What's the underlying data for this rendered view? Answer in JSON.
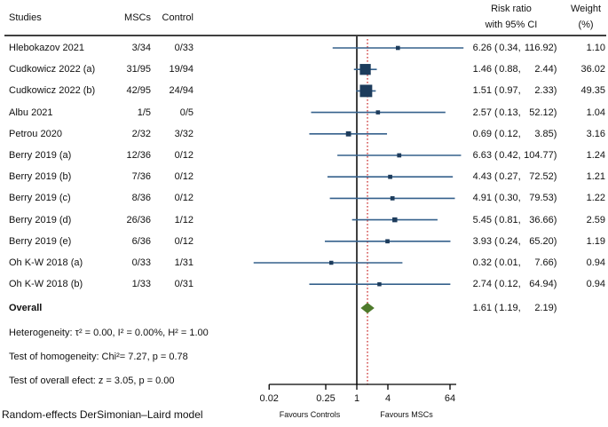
{
  "header": {
    "studies": "Studies",
    "mscs": "MSCs",
    "control": "Control",
    "risk_ratio_line1": "Risk ratio",
    "risk_ratio_line2": "with 95% CI",
    "weight_line1": "Weight",
    "weight_line2": "(%)"
  },
  "chart_data": {
    "type": "forest",
    "x_scale": "log2",
    "x_ticks": [
      0.02,
      0.25,
      1,
      4,
      64
    ],
    "x_tick_labels": [
      "0.02",
      "0.25",
      "1",
      "4",
      "64"
    ],
    "x_range": [
      0.02,
      64
    ],
    "reference_line_value": 1,
    "overall_line_value": 1.61,
    "favours_left": "Favours Controls",
    "favours_right": "Favours MSCs",
    "studies": [
      {
        "name": "Hlebokazov 2021",
        "mscs": "3/34",
        "control": "0/33",
        "rr": 6.26,
        "ci_low": 0.34,
        "ci_high": 116.92,
        "rr_text": "6.26",
        "ci_low_text": "0.34",
        "ci_high_text": "116.92",
        "weight": 1.1,
        "weight_text": "1.10"
      },
      {
        "name": "Cudkowicz 2022 (a)",
        "mscs": "31/95",
        "control": "19/94",
        "rr": 1.46,
        "ci_low": 0.88,
        "ci_high": 2.44,
        "rr_text": "1.46",
        "ci_low_text": "0.88",
        "ci_high_text": "2.44",
        "weight": 36.02,
        "weight_text": "36.02"
      },
      {
        "name": "Cudkowicz 2022 (b)",
        "mscs": "42/95",
        "control": "24/94",
        "rr": 1.51,
        "ci_low": 0.97,
        "ci_high": 2.33,
        "rr_text": "1.51",
        "ci_low_text": "0.97",
        "ci_high_text": "2.33",
        "weight": 49.35,
        "weight_text": "49.35"
      },
      {
        "name": "Albu 2021",
        "mscs": "1/5",
        "control": "0/5",
        "rr": 2.57,
        "ci_low": 0.13,
        "ci_high": 52.12,
        "rr_text": "2.57",
        "ci_low_text": "0.13",
        "ci_high_text": "52.12",
        "weight": 1.04,
        "weight_text": "1.04"
      },
      {
        "name": "Petrou 2020",
        "mscs": "2/32",
        "control": "3/32",
        "rr": 0.69,
        "ci_low": 0.12,
        "ci_high": 3.85,
        "rr_text": "0.69",
        "ci_low_text": "0.12",
        "ci_high_text": "3.85",
        "weight": 3.16,
        "weight_text": "3.16"
      },
      {
        "name": "Berry 2019 (a)",
        "mscs": "12/36",
        "control": "0/12",
        "rr": 6.63,
        "ci_low": 0.42,
        "ci_high": 104.77,
        "rr_text": "6.63",
        "ci_low_text": "0.42",
        "ci_high_text": "104.77",
        "weight": 1.24,
        "weight_text": "1.24"
      },
      {
        "name": "Berry 2019 (b)",
        "mscs": "7/36",
        "control": "0/12",
        "rr": 4.43,
        "ci_low": 0.27,
        "ci_high": 72.52,
        "rr_text": "4.43",
        "ci_low_text": "0.27",
        "ci_high_text": "72.52",
        "weight": 1.21,
        "weight_text": "1.21"
      },
      {
        "name": "Berry 2019 (c)",
        "mscs": "8/36",
        "control": "0/12",
        "rr": 4.91,
        "ci_low": 0.3,
        "ci_high": 79.53,
        "rr_text": "4.91",
        "ci_low_text": "0.30",
        "ci_high_text": "79.53",
        "weight": 1.22,
        "weight_text": "1.22"
      },
      {
        "name": "Berry 2019 (d)",
        "mscs": "26/36",
        "control": "1/12",
        "rr": 5.45,
        "ci_low": 0.81,
        "ci_high": 36.66,
        "rr_text": "5.45",
        "ci_low_text": "0.81",
        "ci_high_text": "36.66",
        "weight": 2.59,
        "weight_text": "2.59"
      },
      {
        "name": "Berry 2019 (e)",
        "mscs": "6/36",
        "control": "0/12",
        "rr": 3.93,
        "ci_low": 0.24,
        "ci_high": 65.2,
        "rr_text": "3.93",
        "ci_low_text": "0.24",
        "ci_high_text": "65.20",
        "weight": 1.19,
        "weight_text": "1.19"
      },
      {
        "name": "Oh K-W 2018 (a)",
        "mscs": "0/33",
        "control": "1/31",
        "rr": 0.32,
        "ci_low": 0.01,
        "ci_high": 7.66,
        "rr_text": "0.32",
        "ci_low_text": "0.01",
        "ci_high_text": "7.66",
        "weight": 0.94,
        "weight_text": "0.94"
      },
      {
        "name": "Oh K-W 2018 (b)",
        "mscs": "1/33",
        "control": "0/31",
        "rr": 2.74,
        "ci_low": 0.12,
        "ci_high": 64.94,
        "rr_text": "2.74",
        "ci_low_text": "0.12",
        "ci_high_text": "64.94",
        "weight": 0.94,
        "weight_text": "0.94"
      }
    ],
    "overall": {
      "label": "Overall",
      "rr": 1.61,
      "ci_low": 1.19,
      "ci_high": 2.19,
      "rr_text": "1.61",
      "ci_low_text": "1.19",
      "ci_high_text": "2.19"
    }
  },
  "footnotes": {
    "heterogeneity": "Heterogeneity: τ² = 0.00, I² = 0.00%, H² = 1.00",
    "homogeneity": "Test of homogeneity: Chi²= 7.27, p = 0.78",
    "overall_effect": "Test of overall efect: z = 3.05, p = 0.00",
    "model": "Random-effects DerSimonian–Laird model"
  },
  "colors": {
    "text": "#111111",
    "ci_line": "#35618c",
    "marker": "#1d3c5c",
    "diamond": "#4e7a2b",
    "reference_line": "#000000",
    "overall_line": "#cc3333",
    "axis": "#000000"
  }
}
